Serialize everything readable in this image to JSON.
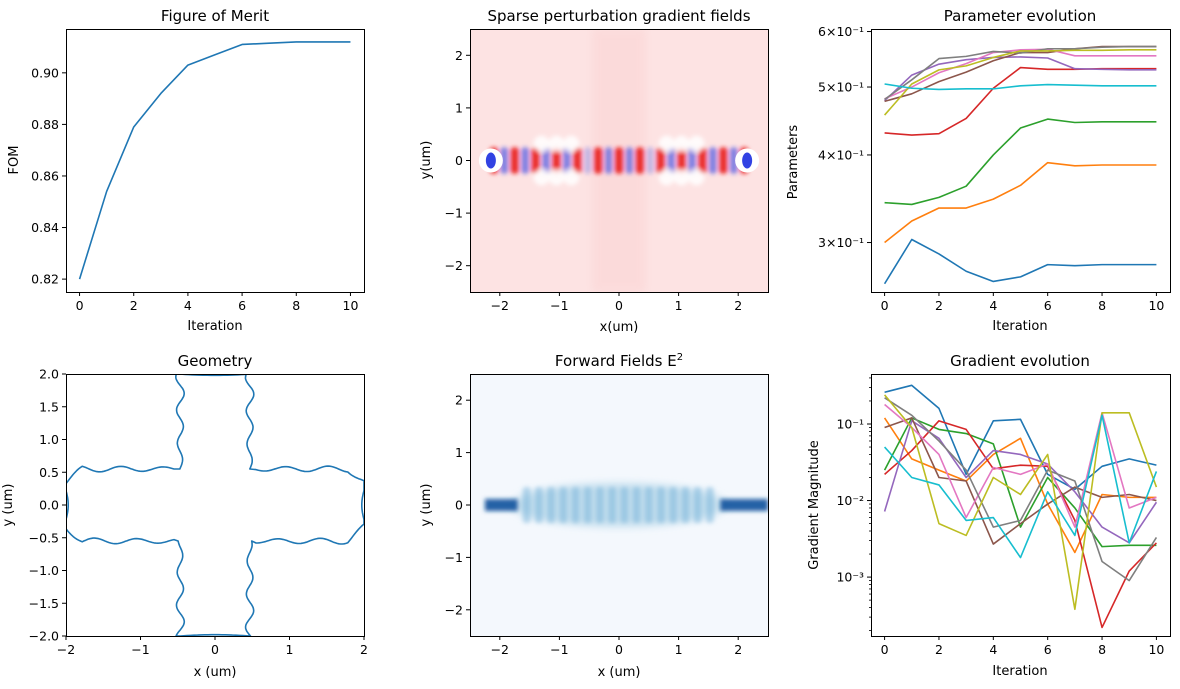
{
  "chart_data": [
    {
      "id": "fom",
      "type": "line",
      "title": "Figure of Merit",
      "xlabel": "Iteration",
      "ylabel": "FOM",
      "xlim": [
        -0.5,
        10.5
      ],
      "ylim": [
        0.815,
        0.917
      ],
      "xticks": [
        0,
        2,
        4,
        6,
        8,
        10
      ],
      "xtick_labels": [
        "0",
        "2",
        "4",
        "6",
        "8",
        "10"
      ],
      "yticks": [
        0.82,
        0.84,
        0.86,
        0.88,
        0.9
      ],
      "ytick_labels": [
        "0.82",
        "0.84",
        "0.86",
        "0.88",
        "0.90"
      ],
      "grid": false,
      "series": [
        {
          "x": [
            0,
            1,
            2,
            3,
            4,
            5,
            6,
            7,
            8,
            9,
            10
          ],
          "values": [
            0.82,
            0.854,
            0.879,
            0.892,
            0.903,
            0.907,
            0.911,
            0.9115,
            0.912,
            0.912,
            0.912
          ],
          "color": "#1f77b4"
        }
      ]
    },
    {
      "id": "gradfields",
      "type": "heatmap",
      "title": "Sparse perturbation gradient fields",
      "xlabel": "x(um)",
      "ylabel": "y(um)",
      "xlim": [
        -2.5,
        2.5
      ],
      "ylim": [
        -2.5,
        2.5
      ],
      "xticks": [
        -2,
        -1,
        0,
        1,
        2
      ],
      "xtick_labels": [
        "−2",
        "−1",
        "0",
        "1",
        "2"
      ],
      "yticks": [
        -2,
        -1,
        0,
        1,
        2
      ],
      "ytick_labels": [
        "−2",
        "−1",
        "0",
        "1",
        "2"
      ],
      "colormap": "bwr",
      "background_color": "#fde3e3",
      "positive_color": "#e8151b",
      "negative_color": "#1c2de0",
      "field_band_half_height_um": 0.25,
      "cross_arm_half_width_um": 0.45
    },
    {
      "id": "params",
      "type": "line",
      "title": "Parameter evolution",
      "xlabel": "Iteration",
      "ylabel": "Parameters",
      "yscale": "log",
      "xlim": [
        -0.5,
        10.5
      ],
      "ylim": [
        0.255,
        0.605
      ],
      "xticks": [
        0,
        2,
        4,
        6,
        8,
        10
      ],
      "xtick_labels": [
        "0",
        "2",
        "4",
        "6",
        "8",
        "10"
      ],
      "yticks": [
        0.3,
        0.4,
        0.5,
        0.6
      ],
      "ytick_labels": [
        "3×10⁻¹",
        "4×10⁻¹",
        "5×10⁻¹",
        "6×10⁻¹"
      ],
      "grid": false,
      "series": [
        {
          "color": "#1f77b4",
          "values": [
            0.262,
            0.303,
            0.289,
            0.273,
            0.264,
            0.268,
            0.279,
            0.278,
            0.279,
            0.279,
            0.279
          ]
        },
        {
          "color": "#ff7f0e",
          "values": [
            0.3,
            0.322,
            0.336,
            0.336,
            0.346,
            0.362,
            0.39,
            0.386,
            0.387,
            0.387,
            0.387
          ]
        },
        {
          "color": "#2ca02c",
          "values": [
            0.342,
            0.34,
            0.348,
            0.361,
            0.4,
            0.437,
            0.45,
            0.445,
            0.446,
            0.446,
            0.446
          ]
        },
        {
          "color": "#d62728",
          "values": [
            0.43,
            0.427,
            0.429,
            0.451,
            0.498,
            0.533,
            0.53,
            0.53,
            0.531,
            0.531,
            0.531
          ]
        },
        {
          "color": "#9467bd",
          "values": [
            0.478,
            0.52,
            0.539,
            0.547,
            0.551,
            0.552,
            0.55,
            0.531,
            0.53,
            0.529,
            0.529
          ]
        },
        {
          "color": "#8c564b",
          "values": [
            0.477,
            0.489,
            0.509,
            0.525,
            0.545,
            0.56,
            0.56,
            0.567,
            0.571,
            0.571,
            0.571
          ]
        },
        {
          "color": "#e377c2",
          "values": [
            0.481,
            0.5,
            0.524,
            0.54,
            0.56,
            0.565,
            0.566,
            0.554,
            0.554,
            0.554,
            0.554
          ]
        },
        {
          "color": "#7f7f7f",
          "values": [
            0.48,
            0.512,
            0.549,
            0.553,
            0.562,
            0.559,
            0.567,
            0.567,
            0.57,
            0.571,
            0.571
          ]
        },
        {
          "color": "#bcbd22",
          "values": [
            0.456,
            0.505,
            0.529,
            0.536,
            0.551,
            0.563,
            0.563,
            0.564,
            0.564,
            0.565,
            0.565
          ]
        },
        {
          "color": "#17becf",
          "values": [
            0.505,
            0.498,
            0.496,
            0.497,
            0.497,
            0.502,
            0.504,
            0.503,
            0.502,
            0.502,
            0.502
          ]
        }
      ]
    },
    {
      "id": "geometry",
      "type": "line",
      "title": "Geometry",
      "xlabel": "x (um)",
      "ylabel": "y (um)",
      "xlim": [
        -2,
        2
      ],
      "ylim": [
        -2,
        2
      ],
      "xticks": [
        -2,
        -1,
        0,
        1,
        2
      ],
      "xtick_labels": [
        "−2",
        "−1",
        "0",
        "1",
        "2"
      ],
      "yticks": [
        -2.0,
        -1.5,
        -1.0,
        -0.5,
        0.0,
        0.5,
        1.0,
        1.5,
        2.0
      ],
      "ytick_labels": [
        "−2.0",
        "−1.5",
        "−1.0",
        "−0.5",
        "0.0",
        "0.5",
        "1.0",
        "1.5",
        "2.0"
      ],
      "grid": false,
      "color": "#1f77b4",
      "arm_half_width": 0.55,
      "arm_end_half_width": 0.25,
      "waviness": 0.05
    },
    {
      "id": "forward",
      "type": "heatmap",
      "title": "Forward Fields E",
      "title_superscript": "2",
      "xlabel": "x (um)",
      "ylabel": "y (um)",
      "xlim": [
        -2.5,
        2.5
      ],
      "ylim": [
        -2.5,
        2.5
      ],
      "xticks": [
        -2,
        -1,
        0,
        1,
        2
      ],
      "xtick_labels": [
        "−2",
        "−1",
        "0",
        "1",
        "2"
      ],
      "yticks": [
        -2,
        -1,
        0,
        1,
        2
      ],
      "ytick_labels": [
        "−2",
        "−1",
        "0",
        "1",
        "2"
      ],
      "colormap": "Blues",
      "background_color": "#f4f8fd",
      "peak_color": "#08519c"
    },
    {
      "id": "gradient",
      "type": "line",
      "title": "Gradient evolution",
      "xlabel": "Iteration",
      "ylabel": "Gradient Magnitude",
      "yscale": "log",
      "xlim": [
        -0.5,
        10.5
      ],
      "ylim": [
        0.00017,
        0.45
      ],
      "xticks": [
        0,
        2,
        4,
        6,
        8,
        10
      ],
      "xtick_labels": [
        "0",
        "2",
        "4",
        "6",
        "8",
        "10"
      ],
      "yticks": [
        0.001,
        0.01,
        0.1
      ],
      "ytick_labels": [
        "10⁻³",
        "10⁻²",
        "10⁻¹"
      ],
      "grid": false,
      "series": [
        {
          "color": "#1f77b4",
          "values": [
            0.26,
            0.32,
            0.16,
            0.022,
            0.11,
            0.115,
            0.022,
            0.014,
            0.028,
            0.035,
            0.029
          ]
        },
        {
          "color": "#ff7f0e",
          "values": [
            0.12,
            0.035,
            0.025,
            0.018,
            0.04,
            0.065,
            0.009,
            0.0021,
            0.012,
            0.011,
            0.011
          ]
        },
        {
          "color": "#2ca02c",
          "values": [
            0.025,
            0.12,
            0.085,
            0.075,
            0.055,
            0.0045,
            0.02,
            0.008,
            0.0025,
            0.0026,
            0.0026
          ]
        },
        {
          "color": "#d62728",
          "values": [
            0.022,
            0.045,
            0.11,
            0.085,
            0.026,
            0.029,
            0.028,
            0.0055,
            0.00022,
            0.0012,
            0.0028
          ]
        },
        {
          "color": "#9467bd",
          "values": [
            0.0072,
            0.11,
            0.065,
            0.02,
            0.045,
            0.04,
            0.03,
            0.013,
            0.0045,
            0.0028,
            0.0095
          ]
        },
        {
          "color": "#8c564b",
          "values": [
            0.09,
            0.12,
            0.02,
            0.018,
            0.0027,
            0.005,
            0.009,
            0.015,
            0.011,
            0.012,
            0.01
          ]
        },
        {
          "color": "#e377c2",
          "values": [
            0.18,
            0.09,
            0.04,
            0.006,
            0.027,
            0.022,
            0.03,
            0.0045,
            0.14,
            0.008,
            0.011
          ]
        },
        {
          "color": "#7f7f7f",
          "values": [
            0.22,
            0.13,
            0.06,
            0.025,
            0.0045,
            0.0055,
            0.025,
            0.018,
            0.0016,
            0.0009,
            0.0033
          ]
        },
        {
          "color": "#bcbd22",
          "values": [
            0.24,
            0.09,
            0.005,
            0.0035,
            0.02,
            0.012,
            0.04,
            0.00038,
            0.14,
            0.14,
            0.015
          ]
        },
        {
          "color": "#17becf",
          "values": [
            0.05,
            0.02,
            0.016,
            0.0055,
            0.006,
            0.0018,
            0.013,
            0.0035,
            0.13,
            0.0028,
            0.024
          ]
        }
      ]
    }
  ]
}
